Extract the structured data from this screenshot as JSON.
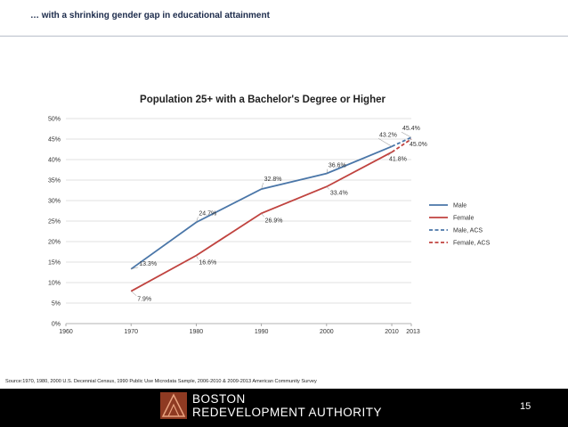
{
  "slide": {
    "headline": "… with a shrinking gender gap in educational attainment",
    "source": "Source:1970, 1980, 2000 U.S. Decennial Census, 1990 Public Use Microdata Sample, 2006-2010 & 2009-2013 American Community Survey",
    "logo_line1": "BOSTON",
    "logo_line2": "REDEVELOPMENT AUTHORITY",
    "page_number": "15"
  },
  "chart_data": {
    "type": "line",
    "title": "Population 25+ with a Bachelor's Degree or Higher",
    "xlim": [
      1960,
      2013
    ],
    "ylim": [
      0,
      50
    ],
    "x_ticks": [
      1960,
      1970,
      1980,
      1990,
      2000,
      2010,
      2013
    ],
    "y_ticks": [
      0,
      5,
      10,
      15,
      20,
      25,
      30,
      35,
      40,
      45,
      50
    ],
    "y_tick_labels": [
      "0%",
      "5%",
      "10%",
      "15%",
      "20%",
      "25%",
      "30%",
      "35%",
      "40%",
      "45%",
      "50%"
    ],
    "grid": true,
    "legend_position": "right",
    "series": [
      {
        "name": "Male",
        "color": "#4a76a8",
        "dash": false,
        "x": [
          1970,
          1980,
          1990,
          2000,
          2010
        ],
        "y": [
          13.3,
          24.7,
          32.8,
          36.6,
          43.2
        ],
        "labels": [
          "13.3%",
          "24.7%",
          "32.8%",
          "36.6%",
          "43.2%"
        ]
      },
      {
        "name": "Female",
        "color": "#c0433f",
        "dash": false,
        "x": [
          1970,
          1980,
          1990,
          2000,
          2010
        ],
        "y": [
          7.9,
          16.6,
          26.9,
          33.4,
          41.8
        ],
        "labels": [
          "7.9%",
          "16.6%",
          "26.9%",
          "33.4%",
          "41.8%"
        ]
      },
      {
        "name": "Male, ACS",
        "color": "#4a76a8",
        "dash": true,
        "x": [
          2010,
          2013
        ],
        "y": [
          43.2,
          45.4
        ],
        "labels": [
          "",
          "45.4%"
        ]
      },
      {
        "name": "Female, ACS",
        "color": "#c0433f",
        "dash": true,
        "x": [
          2010,
          2013
        ],
        "y": [
          41.8,
          45.0
        ],
        "labels": [
          "",
          "45.0%"
        ]
      }
    ]
  }
}
